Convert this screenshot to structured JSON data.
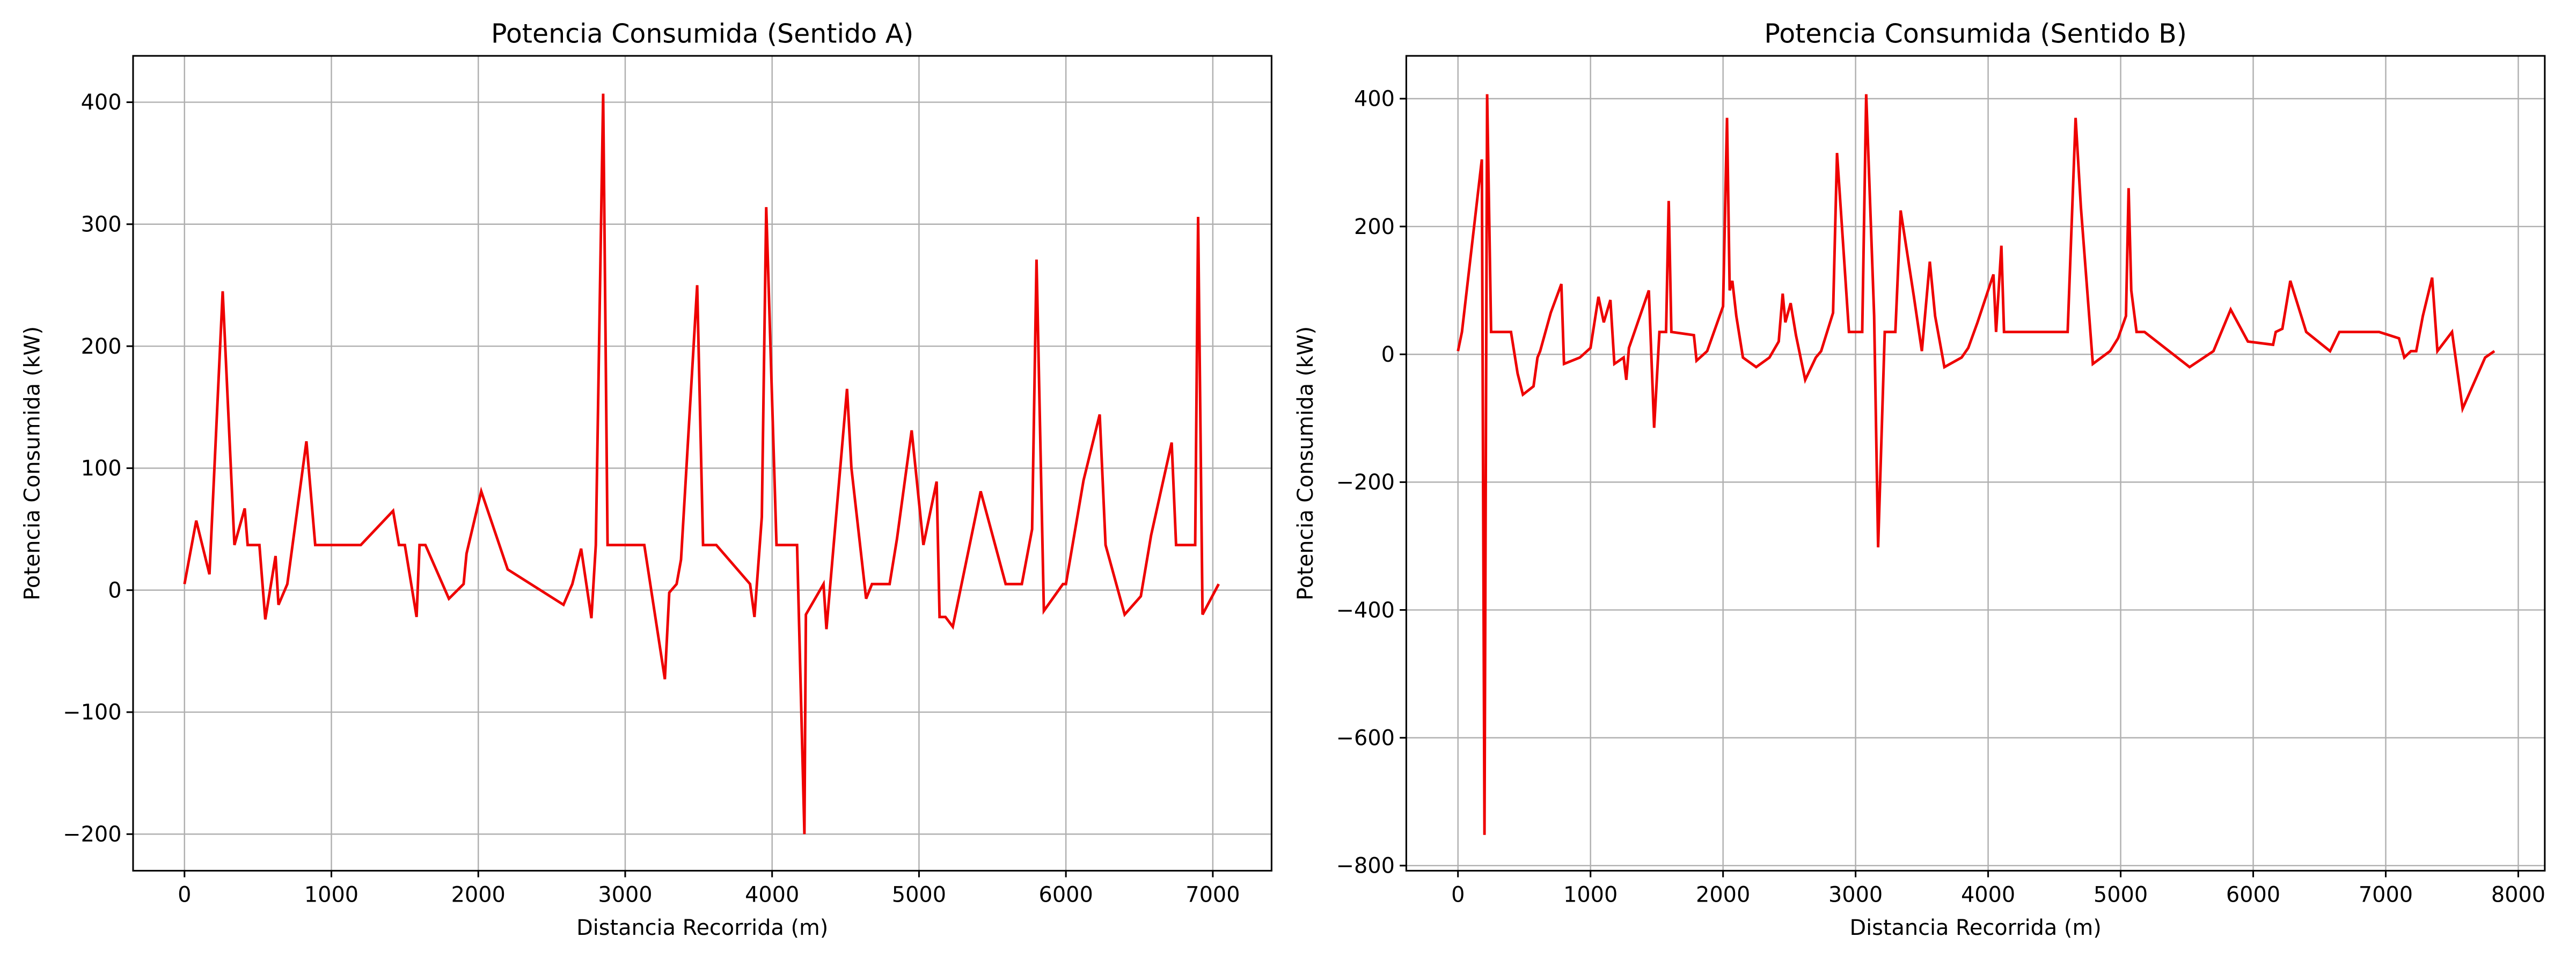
{
  "chart_data": [
    {
      "type": "line",
      "title": "Potencia Consumida (Sentido A)",
      "xlabel": "Distancia Recorrida (m)",
      "ylabel": "Potencia Consumida (kW)",
      "xlim": [
        -350,
        7400
      ],
      "ylim": [
        -230,
        438
      ],
      "xticks": [
        0,
        1000,
        2000,
        3000,
        4000,
        5000,
        6000,
        7000
      ],
      "yticks": [
        {
          "value": -200,
          "label": "−200"
        },
        {
          "value": -100,
          "label": "−100"
        },
        0,
        100,
        200,
        300,
        400
      ],
      "grid": true,
      "color": "#ee0000",
      "x": [
        0,
        80,
        170,
        260,
        340,
        410,
        430,
        510,
        550,
        620,
        640,
        700,
        830,
        890,
        1200,
        1420,
        1460,
        1500,
        1580,
        1600,
        1640,
        1800,
        1900,
        1920,
        2020,
        2200,
        2580,
        2640,
        2700,
        2770,
        2800,
        2850,
        2880,
        3130,
        3270,
        3300,
        3350,
        3380,
        3490,
        3530,
        3620,
        3850,
        3880,
        3930,
        3960,
        4030,
        4170,
        4220,
        4230,
        4350,
        4370,
        4510,
        4540,
        4640,
        4680,
        4800,
        4850,
        4950,
        5030,
        5120,
        5140,
        5180,
        5230,
        5420,
        5590,
        5700,
        5770,
        5800,
        5850,
        5980,
        6000,
        6120,
        6230,
        6270,
        6400,
        6510,
        6580,
        6720,
        6750,
        6880,
        6900,
        6930,
        7040
      ],
      "values": [
        5,
        57,
        13,
        245,
        37,
        67,
        37,
        37,
        -24,
        28,
        -12,
        5,
        122,
        37,
        37,
        65,
        37,
        37,
        -22,
        37,
        37,
        -7,
        5,
        30,
        81,
        17,
        -12,
        5,
        34,
        -23,
        37,
        407,
        37,
        37,
        -73,
        -2,
        5,
        25,
        250,
        37,
        37,
        5,
        -22,
        60,
        314,
        37,
        37,
        -200,
        -20,
        5,
        -32,
        165,
        100,
        -7,
        5,
        5,
        42,
        131,
        37,
        89,
        -22,
        -22,
        -30,
        81,
        5,
        5,
        50,
        271,
        -17,
        5,
        5,
        90,
        144,
        37,
        -20,
        -5,
        45,
        121,
        37,
        37,
        306,
        -20,
        5
      ]
    },
    {
      "type": "line",
      "title": "Potencia Consumida (Sentido B)",
      "xlabel": "Distancia Recorrida (m)",
      "ylabel": "Potencia Consumida (kW)",
      "xlim": [
        -390,
        8200
      ],
      "ylim": [
        -808,
        467
      ],
      "xticks": [
        0,
        1000,
        2000,
        3000,
        4000,
        5000,
        6000,
        7000,
        8000
      ],
      "yticks": [
        {
          "value": -800,
          "label": "−800"
        },
        {
          "value": -600,
          "label": "−600"
        },
        {
          "value": -400,
          "label": "−400"
        },
        {
          "value": -200,
          "label": "−200"
        },
        0,
        200,
        400
      ],
      "grid": true,
      "color": "#ee0000",
      "x": [
        0,
        30,
        180,
        200,
        220,
        250,
        330,
        400,
        450,
        490,
        570,
        600,
        620,
        700,
        780,
        800,
        920,
        1000,
        1060,
        1100,
        1150,
        1180,
        1250,
        1270,
        1290,
        1390,
        1440,
        1480,
        1520,
        1570,
        1590,
        1610,
        1780,
        1800,
        1880,
        2000,
        2030,
        2050,
        2070,
        2100,
        2150,
        2250,
        2350,
        2420,
        2450,
        2470,
        2510,
        2550,
        2620,
        2700,
        2740,
        2830,
        2860,
        2950,
        3050,
        3080,
        3140,
        3170,
        3220,
        3300,
        3340,
        3440,
        3500,
        3560,
        3600,
        3670,
        3800,
        3850,
        3920,
        4000,
        4040,
        4060,
        4100,
        4120,
        4600,
        4660,
        4700,
        4790,
        4920,
        4980,
        5040,
        5060,
        5080,
        5120,
        5180,
        5520,
        5700,
        5830,
        5960,
        6150,
        6170,
        6220,
        6280,
        6400,
        6580,
        6650,
        6950,
        7100,
        7140,
        7190,
        7230,
        7280,
        7350,
        7390,
        7500,
        7580,
        7750,
        7820
      ],
      "values": [
        5,
        35,
        305,
        -752,
        407,
        35,
        35,
        35,
        -30,
        -63,
        -50,
        -5,
        5,
        65,
        110,
        -15,
        -5,
        10,
        90,
        50,
        85,
        -15,
        -5,
        -40,
        10,
        70,
        100,
        -115,
        35,
        35,
        240,
        35,
        30,
        -10,
        5,
        75,
        370,
        100,
        115,
        60,
        -5,
        -20,
        -5,
        20,
        95,
        50,
        80,
        30,
        -40,
        -5,
        5,
        65,
        315,
        35,
        35,
        407,
        60,
        -302,
        35,
        35,
        225,
        90,
        5,
        145,
        60,
        -20,
        -5,
        10,
        50,
        100,
        125,
        35,
        170,
        35,
        35,
        370,
        230,
        -15,
        5,
        25,
        60,
        260,
        100,
        35,
        35,
        -20,
        5,
        70,
        20,
        15,
        35,
        40,
        115,
        35,
        5,
        35,
        35,
        25,
        -5,
        5,
        5,
        60,
        120,
        5,
        35,
        -85,
        -5,
        5
      ]
    }
  ]
}
